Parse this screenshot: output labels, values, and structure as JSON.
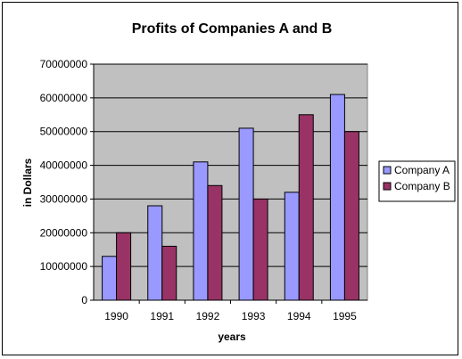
{
  "chart_data": {
    "type": "bar",
    "title": "Profits of Companies A and B",
    "xlabel": "years",
    "ylabel": "in Dollars",
    "categories": [
      "1990",
      "1991",
      "1992",
      "1993",
      "1994",
      "1995"
    ],
    "series": [
      {
        "name": "Company A",
        "values": [
          13000000,
          28000000,
          41000000,
          51000000,
          32000000,
          61000000
        ],
        "color": "#9999ff"
      },
      {
        "name": "Company B",
        "values": [
          20000000,
          16000000,
          34000000,
          30000000,
          55000000,
          50000000
        ],
        "color": "#993366"
      }
    ],
    "ylim": [
      0,
      70000000
    ],
    "yticks": [
      "0",
      "10000000",
      "20000000",
      "30000000",
      "40000000",
      "50000000",
      "60000000",
      "70000000"
    ],
    "grid": true,
    "plot_background": "#c0c0c0",
    "legend_position": "right"
  }
}
